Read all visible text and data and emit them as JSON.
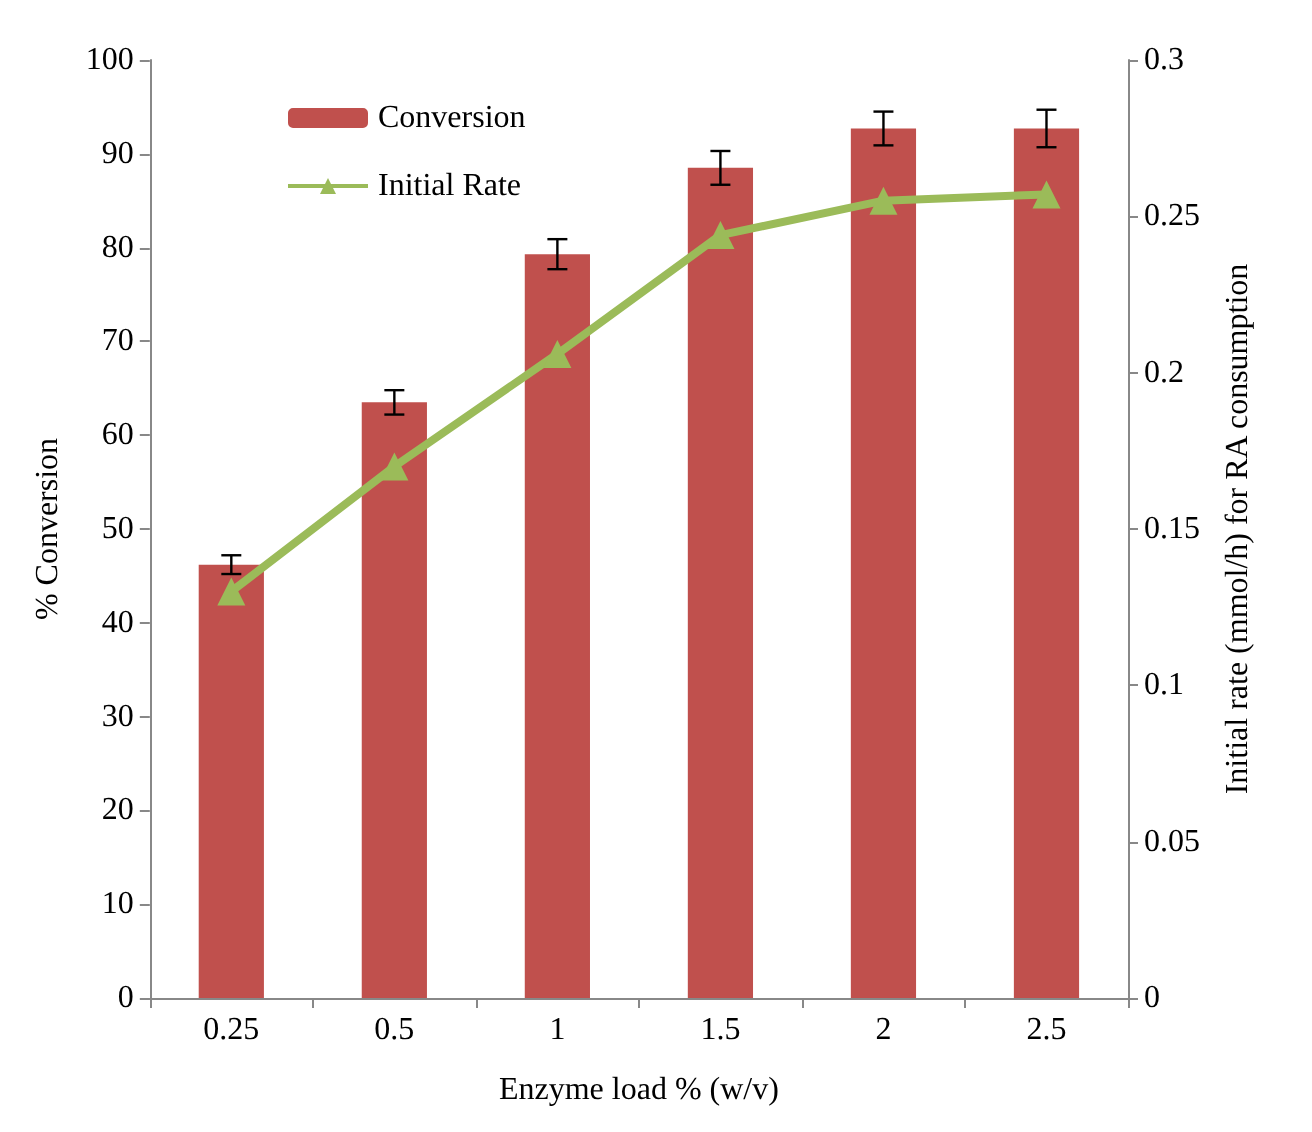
{
  "chart_data": {
    "type": "bar",
    "xlabel": "Enzyme load % (w/v)",
    "ylabel": "% Conversion",
    "y2label": "Initial rate (mmol/h) for RA consumption",
    "categories": [
      "0.25",
      "0.5",
      "1",
      "1.5",
      "2",
      "2.5"
    ],
    "series": [
      {
        "name": "Conversion",
        "color": "#c0504d",
        "values": [
          46.2,
          63.5,
          79.3,
          88.5,
          92.7,
          92.7
        ],
        "errors": [
          1,
          1.3,
          1.6,
          1.8,
          1.8,
          2
        ]
      },
      {
        "name": "Initial Rate",
        "type": "line",
        "axis": "y2",
        "color": "#9bbb59",
        "marker": "triangle",
        "values": [
          0.13,
          0.17,
          0.206,
          0.244,
          0.255,
          0.257
        ]
      }
    ],
    "ylim": [
      0,
      100
    ],
    "yticks": [
      0,
      10,
      20,
      30,
      40,
      50,
      60,
      70,
      80,
      90,
      100
    ],
    "y2lim": [
      0,
      0.3
    ],
    "y2ticks": [
      0,
      0.05,
      0.1,
      0.15,
      0.2,
      0.25,
      0.3
    ],
    "legend": "top left",
    "grid": false
  }
}
